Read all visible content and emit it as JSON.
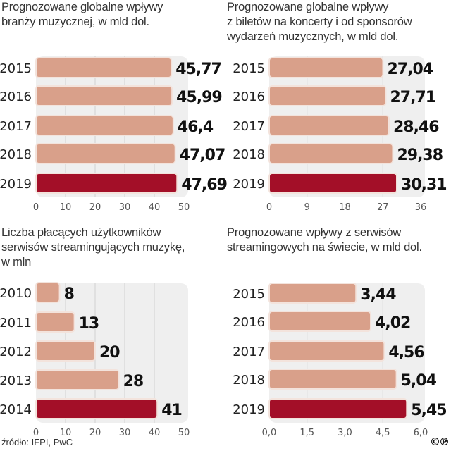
{
  "colors": {
    "bar": "#D9A08A",
    "bar_border": "#f3e3dc",
    "highlight": "#A30F28",
    "plot_bg": "#efefef",
    "grid": "#d2d2d2",
    "label": "#222222",
    "tick": "#555555"
  },
  "source": "źródło: IFPI, PwC",
  "logo": "©℗",
  "chart_data": [
    {
      "type": "bar",
      "orientation": "horizontal",
      "title": "Prognozowane globalne wpływy\nbranży muzycznej, w mld dol.",
      "categories": [
        "2015",
        "2016",
        "2017",
        "2018",
        "2019"
      ],
      "values": [
        45.77,
        45.99,
        46.4,
        47.07,
        47.69
      ],
      "value_labels": [
        "45,77",
        "45,99",
        "46,4",
        "47,07",
        "47,69"
      ],
      "highlight_index": 4,
      "xlim": [
        0,
        50
      ],
      "xticks": [
        0,
        10,
        20,
        30,
        40,
        50
      ],
      "xtick_labels": [
        "0",
        "10",
        "20",
        "30",
        "40",
        "50"
      ],
      "grid": true
    },
    {
      "type": "bar",
      "orientation": "horizontal",
      "title": "Prognozowane globalne wpływy\nz biletów na koncerty i od sponsorów\nwydarzeń muzycznych, w mld dol.",
      "categories": [
        "2015",
        "2016",
        "2017",
        "2018",
        "2019"
      ],
      "values": [
        27.04,
        27.71,
        28.46,
        29.38,
        30.31
      ],
      "value_labels": [
        "27,04",
        "27,71",
        "28,46",
        "29,38",
        "30,31"
      ],
      "highlight_index": 4,
      "xlim": [
        0,
        36
      ],
      "xticks": [
        0,
        9,
        18,
        27,
        36
      ],
      "xtick_labels": [
        "0",
        "9",
        "18",
        "27",
        "36"
      ],
      "grid": true
    },
    {
      "type": "bar",
      "orientation": "horizontal",
      "title": "Liczba płacących użytkowników\nserwisów streamingujących muzykę,\nw mln",
      "categories": [
        "2010",
        "2011",
        "2012",
        "2013",
        "2014"
      ],
      "values": [
        8,
        13,
        20,
        28,
        41
      ],
      "value_labels": [
        "8",
        "13",
        "20",
        "28",
        "41"
      ],
      "highlight_index": 4,
      "xlim": [
        0,
        50
      ],
      "xticks": [
        0,
        10,
        20,
        30,
        40,
        50
      ],
      "xtick_labels": [
        "0",
        "10",
        "20",
        "30",
        "40",
        "50"
      ],
      "grid": true
    },
    {
      "type": "bar",
      "orientation": "horizontal",
      "title": "Prognozowane wpływy z serwisów\nstreamingowych na świecie, w mld dol.",
      "categories": [
        "2015",
        "2016",
        "2017",
        "2018",
        "2019"
      ],
      "values": [
        3.44,
        4.02,
        4.56,
        5.04,
        5.45
      ],
      "value_labels": [
        "3,44",
        "4,02",
        "4,56",
        "5,04",
        "5,45"
      ],
      "highlight_index": 4,
      "xlim": [
        0,
        6
      ],
      "xticks": [
        0,
        1.5,
        3,
        4.5,
        6
      ],
      "xtick_labels": [
        "0,0",
        "1,5",
        "3,0",
        "4,5",
        "6,0"
      ],
      "grid": true
    }
  ]
}
